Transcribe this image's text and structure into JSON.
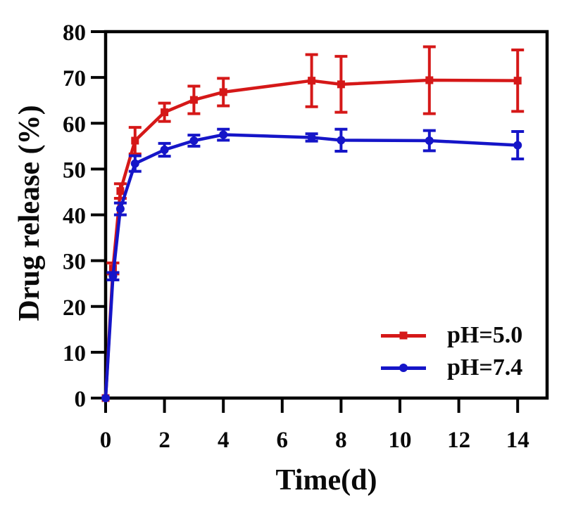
{
  "chart_data": {
    "type": "line",
    "title": "",
    "xlabel": "Time(d)",
    "ylabel": "Drug release (%)",
    "xlim": [
      0,
      15
    ],
    "ylim": [
      0,
      80
    ],
    "x_ticks": [
      0,
      2,
      4,
      6,
      8,
      10,
      12,
      14
    ],
    "y_ticks": [
      0,
      10,
      20,
      30,
      40,
      50,
      60,
      70,
      80
    ],
    "grid": false,
    "frame": "full-box",
    "legend_position": "lower right",
    "axis_color": "#000000",
    "x": [
      0,
      0.25,
      0.5,
      1,
      2,
      3,
      4,
      7,
      8,
      11,
      14
    ],
    "series": [
      {
        "name": "pH=5.0",
        "color": "#d51818",
        "marker": "square",
        "values": [
          0,
          28.3,
          45.2,
          56.2,
          62.4,
          65.1,
          66.8,
          69.3,
          68.5,
          69.4,
          69.3
        ],
        "errors": [
          0,
          1.2,
          1.6,
          2.9,
          2.0,
          3.0,
          3.0,
          5.7,
          6.1,
          7.3,
          6.7
        ]
      },
      {
        "name": "pH=7.4",
        "color": "#1515c8",
        "marker": "circle",
        "values": [
          0,
          26.6,
          41.3,
          51.2,
          54.2,
          56.2,
          57.5,
          56.9,
          56.3,
          56.2,
          55.2
        ],
        "errors": [
          0,
          0.8,
          1.3,
          1.7,
          1.4,
          1.2,
          1.2,
          0.8,
          2.4,
          2.2,
          3.0
        ]
      }
    ]
  }
}
